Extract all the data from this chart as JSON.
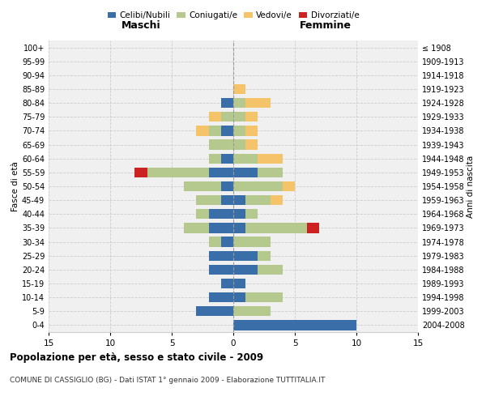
{
  "age_groups": [
    "0-4",
    "5-9",
    "10-14",
    "15-19",
    "20-24",
    "25-29",
    "30-34",
    "35-39",
    "40-44",
    "45-49",
    "50-54",
    "55-59",
    "60-64",
    "65-69",
    "70-74",
    "75-79",
    "80-84",
    "85-89",
    "90-94",
    "95-99",
    "100+"
  ],
  "birth_years": [
    "2004-2008",
    "1999-2003",
    "1994-1998",
    "1989-1993",
    "1984-1988",
    "1979-1983",
    "1974-1978",
    "1969-1973",
    "1964-1968",
    "1959-1963",
    "1954-1958",
    "1949-1953",
    "1944-1948",
    "1939-1943",
    "1934-1938",
    "1929-1933",
    "1924-1928",
    "1919-1923",
    "1914-1918",
    "1909-1913",
    "≤ 1908"
  ],
  "males": {
    "celibi": [
      0,
      3,
      2,
      1,
      2,
      2,
      1,
      2,
      2,
      1,
      1,
      2,
      1,
      0,
      1,
      0,
      1,
      0,
      0,
      0,
      0
    ],
    "coniugati": [
      0,
      0,
      0,
      0,
      0,
      0,
      1,
      2,
      1,
      2,
      3,
      5,
      1,
      2,
      1,
      1,
      0,
      0,
      0,
      0,
      0
    ],
    "vedovi": [
      0,
      0,
      0,
      0,
      0,
      0,
      0,
      0,
      0,
      0,
      0,
      0,
      0,
      0,
      1,
      1,
      0,
      0,
      0,
      0,
      0
    ],
    "divorziati": [
      0,
      0,
      0,
      0,
      0,
      0,
      0,
      0,
      0,
      0,
      0,
      1,
      0,
      0,
      0,
      0,
      0,
      0,
      0,
      0,
      0
    ]
  },
  "females": {
    "nubili": [
      10,
      0,
      1,
      1,
      2,
      2,
      0,
      1,
      1,
      1,
      0,
      2,
      0,
      0,
      0,
      0,
      0,
      0,
      0,
      0,
      0
    ],
    "coniugate": [
      0,
      3,
      3,
      0,
      2,
      1,
      3,
      5,
      1,
      2,
      4,
      2,
      2,
      1,
      1,
      1,
      1,
      0,
      0,
      0,
      0
    ],
    "vedove": [
      0,
      0,
      0,
      0,
      0,
      0,
      0,
      0,
      0,
      1,
      1,
      0,
      2,
      1,
      1,
      1,
      2,
      1,
      0,
      0,
      0
    ],
    "divorziate": [
      0,
      0,
      0,
      0,
      0,
      0,
      0,
      1,
      0,
      0,
      0,
      0,
      0,
      0,
      0,
      0,
      0,
      0,
      0,
      0,
      0
    ]
  },
  "colors": {
    "celibi_nubili": "#3a6ea8",
    "coniugati": "#b5c98e",
    "vedovi": "#f5c46a",
    "divorziati": "#cc2222"
  },
  "xlim": 15,
  "title": "Popolazione per età, sesso e stato civile - 2009",
  "subtitle": "COMUNE DI CASSIGLIO (BG) - Dati ISTAT 1° gennaio 2009 - Elaborazione TUTTITALIA.IT",
  "ylabel_left": "Fasce di età",
  "ylabel_right": "Anni di nascita",
  "xlabel_maschi": "Maschi",
  "xlabel_femmine": "Femmine",
  "legend_labels": [
    "Celibi/Nubili",
    "Coniugati/e",
    "Vedovi/e",
    "Divorziati/e"
  ]
}
